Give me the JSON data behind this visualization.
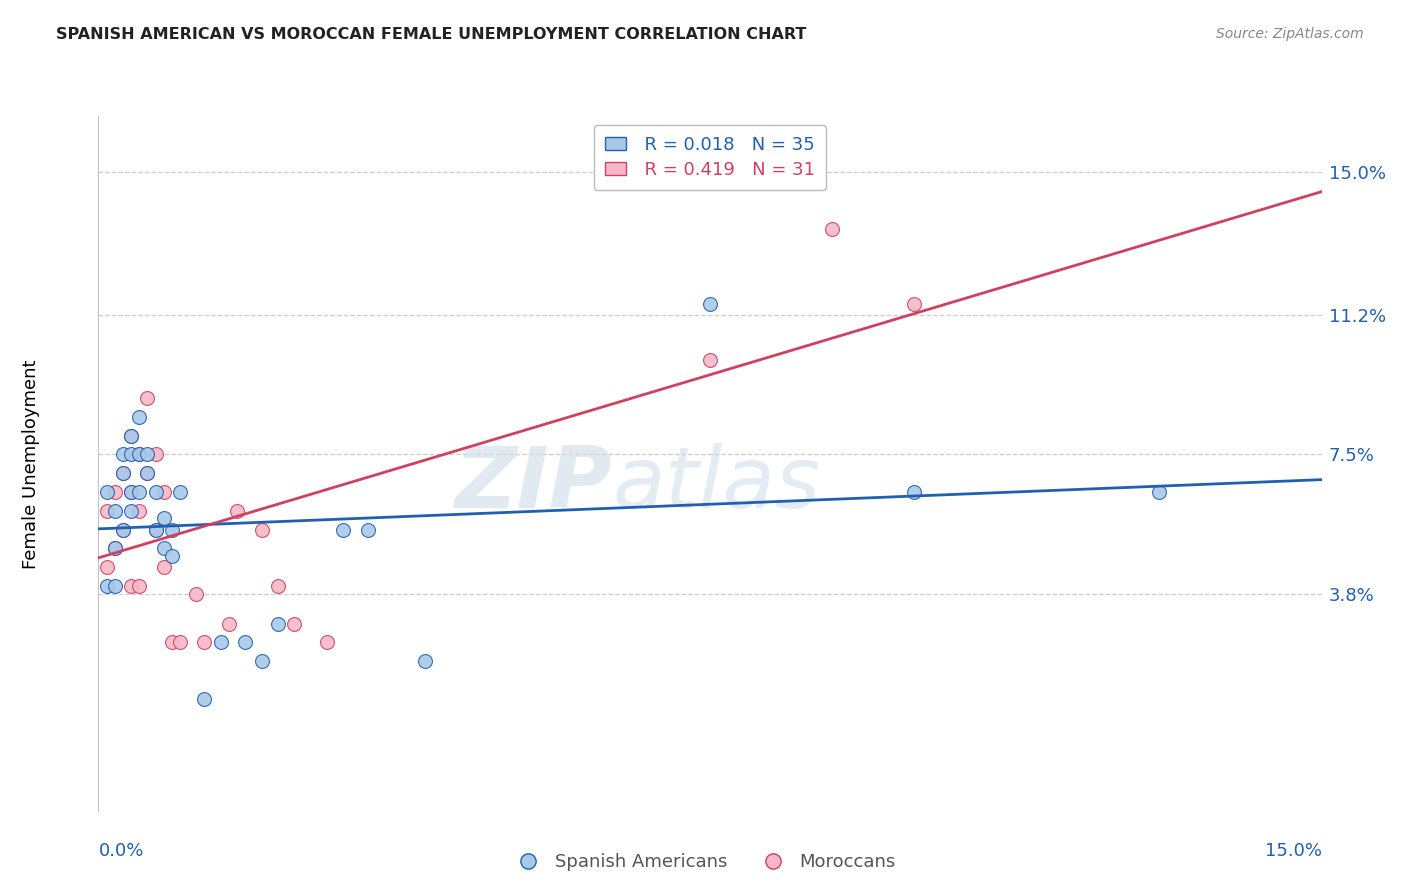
{
  "title": "SPANISH AMERICAN VS MOROCCAN FEMALE UNEMPLOYMENT CORRELATION CHART",
  "source": "Source: ZipAtlas.com",
  "ylabel": "Female Unemployment",
  "ytick_labels": [
    "15.0%",
    "11.2%",
    "7.5%",
    "3.8%"
  ],
  "ytick_values": [
    0.15,
    0.112,
    0.075,
    0.038
  ],
  "xlim": [
    0.0,
    0.15
  ],
  "ylim": [
    -0.02,
    0.165
  ],
  "legend_blue_r": "R = 0.018",
  "legend_blue_n": "N = 35",
  "legend_pink_r": "R = 0.419",
  "legend_pink_n": "N = 31",
  "legend_blue_label": "Spanish Americans",
  "legend_pink_label": "Moroccans",
  "blue_color": "#a8c8e8",
  "pink_color": "#f4b8c8",
  "line_blue": "#2060b0",
  "line_pink": "#d04060",
  "watermark_zip": "ZIP",
  "watermark_atlas": "atlas",
  "blue_x": [
    0.001,
    0.001,
    0.002,
    0.002,
    0.002,
    0.003,
    0.003,
    0.003,
    0.004,
    0.004,
    0.004,
    0.004,
    0.005,
    0.005,
    0.005,
    0.006,
    0.006,
    0.007,
    0.007,
    0.008,
    0.008,
    0.009,
    0.009,
    0.01,
    0.013,
    0.015,
    0.018,
    0.02,
    0.022,
    0.03,
    0.033,
    0.04,
    0.075,
    0.1,
    0.13
  ],
  "blue_y": [
    0.065,
    0.04,
    0.06,
    0.05,
    0.04,
    0.075,
    0.07,
    0.055,
    0.08,
    0.075,
    0.065,
    0.06,
    0.085,
    0.075,
    0.065,
    0.075,
    0.07,
    0.065,
    0.055,
    0.058,
    0.05,
    0.055,
    0.048,
    0.065,
    0.01,
    0.025,
    0.025,
    0.02,
    0.03,
    0.055,
    0.055,
    0.02,
    0.115,
    0.065,
    0.065
  ],
  "pink_x": [
    0.001,
    0.001,
    0.002,
    0.002,
    0.003,
    0.003,
    0.004,
    0.004,
    0.004,
    0.005,
    0.005,
    0.005,
    0.006,
    0.006,
    0.007,
    0.007,
    0.008,
    0.008,
    0.009,
    0.01,
    0.012,
    0.013,
    0.016,
    0.017,
    0.02,
    0.022,
    0.024,
    0.028,
    0.075,
    0.09,
    0.1
  ],
  "pink_y": [
    0.06,
    0.045,
    0.065,
    0.05,
    0.07,
    0.055,
    0.08,
    0.065,
    0.04,
    0.075,
    0.06,
    0.04,
    0.09,
    0.07,
    0.075,
    0.055,
    0.065,
    0.045,
    0.025,
    0.025,
    0.038,
    0.025,
    0.03,
    0.06,
    0.055,
    0.04,
    0.03,
    0.025,
    0.1,
    0.135,
    0.115
  ],
  "marker_size": 100,
  "grid_color": "#cccccc",
  "background_color": "#ffffff",
  "blue_line_slope": 0.018,
  "pink_line_slope": 0.419
}
